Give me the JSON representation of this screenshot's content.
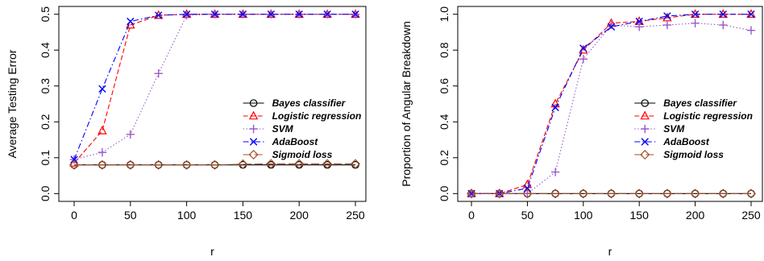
{
  "chart_data": [
    {
      "type": "line",
      "xlabel": "r",
      "ylabel": "Average Testing Error",
      "xlim": [
        0,
        250
      ],
      "ylim": [
        0,
        0.5
      ],
      "xticks": [
        "0",
        "50",
        "100",
        "150",
        "200",
        "250"
      ],
      "yticks": [
        "0.0",
        "0.1",
        "0.2",
        "0.3",
        "0.4",
        "0.5"
      ],
      "x": [
        0,
        25,
        50,
        75,
        100,
        125,
        150,
        175,
        200,
        225,
        250
      ],
      "legend_position": "right",
      "series": [
        {
          "name": "Bayes classifier",
          "color": "#000000",
          "marker": "circle",
          "dash": "solid",
          "values": [
            0.08,
            0.08,
            0.08,
            0.08,
            0.08,
            0.08,
            0.08,
            0.08,
            0.08,
            0.08,
            0.08
          ]
        },
        {
          "name": "Logistic regression",
          "color": "#ff0000",
          "marker": "triangle",
          "dash": "dashed",
          "values": [
            0.085,
            0.175,
            0.47,
            0.497,
            0.5,
            0.5,
            0.5,
            0.5,
            0.5,
            0.5,
            0.5
          ]
        },
        {
          "name": "SVM",
          "color": "#9b59c9",
          "marker": "plus",
          "dash": "dotted",
          "values": [
            0.095,
            0.115,
            0.165,
            0.335,
            0.497,
            0.5,
            0.5,
            0.5,
            0.5,
            0.5,
            0.5
          ]
        },
        {
          "name": "AdaBoost",
          "color": "#0000ff",
          "marker": "cross",
          "dash": "dotdash",
          "values": [
            0.095,
            0.292,
            0.48,
            0.497,
            0.5,
            0.5,
            0.5,
            0.5,
            0.5,
            0.5,
            0.5
          ]
        },
        {
          "name": "Sigmoid loss",
          "color": "#a0522d",
          "marker": "diamond",
          "dash": "longdash",
          "values": [
            0.08,
            0.08,
            0.08,
            0.08,
            0.08,
            0.08,
            0.082,
            0.083,
            0.083,
            0.083,
            0.083
          ]
        }
      ]
    },
    {
      "type": "line",
      "xlabel": "r",
      "ylabel": "Proportion of Angular Breakdown",
      "xlim": [
        0,
        250
      ],
      "ylim": [
        0,
        1
      ],
      "xticks": [
        "0",
        "50",
        "100",
        "150",
        "200",
        "250"
      ],
      "yticks": [
        "0.0",
        "0.2",
        "0.4",
        "0.6",
        "0.8",
        "1.0"
      ],
      "x": [
        0,
        25,
        50,
        75,
        100,
        125,
        150,
        175,
        200,
        225,
        250
      ],
      "legend_position": "right",
      "series": [
        {
          "name": "Bayes classifier",
          "color": "#000000",
          "marker": "circle",
          "dash": "solid",
          "values": [
            0,
            0,
            0,
            0,
            0,
            0,
            0,
            0,
            0,
            0,
            0
          ]
        },
        {
          "name": "Logistic regression",
          "color": "#ff0000",
          "marker": "triangle",
          "dash": "dashed",
          "values": [
            0,
            0,
            0.05,
            0.5,
            0.8,
            0.95,
            0.96,
            0.98,
            1.0,
            1.0,
            1.0
          ]
        },
        {
          "name": "SVM",
          "color": "#9b59c9",
          "marker": "plus",
          "dash": "dotted",
          "values": [
            0,
            0,
            0,
            0.12,
            0.75,
            0.94,
            0.93,
            0.94,
            0.95,
            0.94,
            0.91
          ]
        },
        {
          "name": "AdaBoost",
          "color": "#0000ff",
          "marker": "cross",
          "dash": "dotdash",
          "values": [
            0,
            0,
            0.03,
            0.48,
            0.81,
            0.93,
            0.96,
            0.99,
            1.0,
            1.0,
            1.0
          ]
        },
        {
          "name": "Sigmoid loss",
          "color": "#a0522d",
          "marker": "diamond",
          "dash": "longdash",
          "values": [
            0,
            0,
            0,
            0,
            0,
            0,
            0,
            0,
            0,
            0,
            0
          ]
        }
      ]
    }
  ]
}
